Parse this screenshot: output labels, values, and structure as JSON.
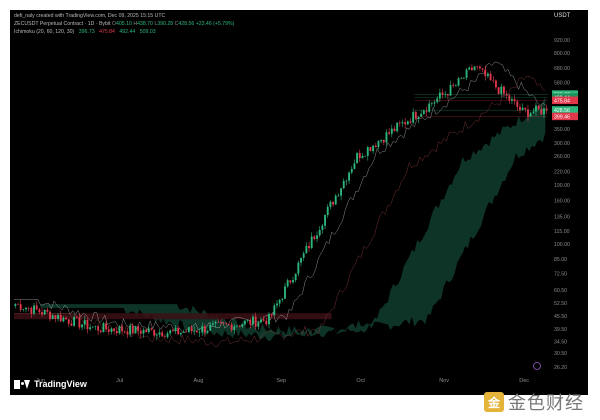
{
  "attribution": "defi_naly created with TradingView.com, Dec 09, 2025 15:15 UTC",
  "symbol_line": "ZECUSDT Perpetual Contract · 1D · Bybit",
  "ohlc": {
    "o_label": "O",
    "o": "405.10",
    "h_label": "H",
    "h": "438.70",
    "l_label": "L",
    "l": "390.28",
    "c_label": "C",
    "c": "428.56",
    "change": "+23.46 (+5.79%)"
  },
  "indicator_line": {
    "name": "Ichimoku (20, 60, 120, 30)",
    "values": [
      "396.73",
      "475.84",
      "492.44",
      "509.03"
    ]
  },
  "currency": "USDT",
  "brand": "TradingView",
  "watermark_text": "金色财经",
  "chart_data": {
    "type": "candlestick",
    "scale": "log",
    "ylim": [
      24,
      920
    ],
    "y_ticks": [
      "920.00",
      "800.00",
      "680.00",
      "580.00",
      "492.44",
      "428.56",
      "399.46",
      "350.00",
      "300.00",
      "260.00",
      "220.00",
      "190.00",
      "160.00",
      "135.00",
      "115.00",
      "100.00",
      "85.00",
      "72.50",
      "60.50",
      "52.50",
      "45.50",
      "39.50",
      "34.50",
      "30.50",
      "26.20"
    ],
    "x_ticks": [
      "Jun",
      "Jul",
      "Aug",
      "Sep",
      "Oct",
      "Nov",
      "Dec"
    ],
    "price_tags": [
      {
        "value": "509.03",
        "color": "#2db67c"
      },
      {
        "value": "492.44",
        "color": "#1f8f5c"
      },
      {
        "value": "475.84",
        "color": "#e0384a"
      },
      {
        "value": "428.56",
        "color": "#2db67c"
      },
      {
        "value": "399.46",
        "color": "#e0384a"
      }
    ],
    "candle_close_checkpoints": [
      {
        "label": "Jun",
        "close": 52
      },
      {
        "label": "Jul",
        "close": 40
      },
      {
        "label": "Aug",
        "close": 38
      },
      {
        "label": "Sep",
        "close": 44
      },
      {
        "label": "Oct",
        "close": 260
      },
      {
        "label": "Nov",
        "close": 560
      },
      {
        "label": "Nov-peak",
        "close": 690
      },
      {
        "label": "Dec",
        "close": 420
      },
      {
        "label": "last",
        "close": 428.56
      }
    ],
    "colors": {
      "up": "#2db67c",
      "down": "#e0384a",
      "cloud": "#0f3a2c",
      "cloud_red": "#3b1015",
      "tenkan": "#c8c8c8",
      "kijun": "#8a3a3a",
      "lagging": "#2b7a58"
    }
  }
}
